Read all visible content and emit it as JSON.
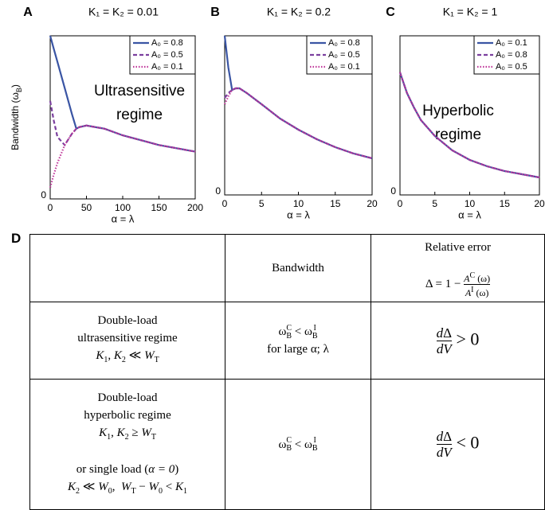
{
  "chart_data": [
    {
      "type": "line",
      "panel": "A",
      "title": "K₁ = K₂ = 0.01",
      "ylabel": [
        "Bandwidth (ω",
        {
          "text": "B",
          "style": "sub"
        },
        ")"
      ],
      "xlabel": "α = λ",
      "x": [
        0,
        5,
        10,
        20,
        30,
        36,
        40,
        50,
        75,
        100,
        125,
        150,
        175,
        200
      ],
      "series": [
        {
          "name": "A₀ = 0.8",
          "color": "#3a55a4",
          "dash": "solid",
          "values": [
            1.0,
            0.92,
            0.84,
            0.68,
            0.52,
            0.43,
            0.44,
            0.45,
            0.43,
            0.39,
            0.36,
            0.33,
            0.31,
            0.29
          ]
        },
        {
          "name": "A₀ = 0.5",
          "color": "#7b3f9e",
          "dash": "dashed",
          "values": [
            0.6,
            0.48,
            0.38,
            0.33,
            0.4,
            0.43,
            0.44,
            0.45,
            0.43,
            0.39,
            0.36,
            0.33,
            0.31,
            0.29
          ]
        },
        {
          "name": "A₀ = 0.1",
          "color": "#c0399b",
          "dash": "dotted",
          "values": [
            0.07,
            0.15,
            0.22,
            0.33,
            0.4,
            0.43,
            0.44,
            0.45,
            0.43,
            0.39,
            0.36,
            0.33,
            0.31,
            0.29
          ]
        }
      ],
      "annotation": [
        "Ultrasensitive",
        "regime"
      ],
      "xlim": [
        0,
        200
      ],
      "ylim": [
        0,
        1
      ],
      "xticks": [
        0,
        50,
        100,
        150,
        200
      ],
      "yticks": [
        0
      ],
      "legend": "upper right"
    },
    {
      "type": "line",
      "panel": "B",
      "title": "K₁ = K₂ = 0.2",
      "xlabel": "α = λ",
      "x": [
        0,
        0.5,
        1,
        1.5,
        2,
        3,
        5,
        7.5,
        10,
        12.5,
        15,
        17.5,
        20
      ],
      "series": [
        {
          "name": "A₀ = 0.8",
          "color": "#3a55a4",
          "dash": "solid",
          "values": [
            1.0,
            0.8,
            0.66,
            0.67,
            0.67,
            0.64,
            0.57,
            0.48,
            0.41,
            0.35,
            0.3,
            0.26,
            0.23
          ]
        },
        {
          "name": "A₀ = 0.5",
          "color": "#7b3f9e",
          "dash": "dashed",
          "values": [
            0.61,
            0.64,
            0.66,
            0.67,
            0.67,
            0.64,
            0.57,
            0.48,
            0.41,
            0.35,
            0.3,
            0.26,
            0.23
          ]
        },
        {
          "name": "A₀ = 0.1",
          "color": "#c0399b",
          "dash": "dotted",
          "values": [
            0.57,
            0.62,
            0.66,
            0.67,
            0.67,
            0.64,
            0.57,
            0.48,
            0.41,
            0.35,
            0.3,
            0.26,
            0.23
          ]
        }
      ],
      "xlim": [
        0,
        20
      ],
      "ylim": [
        0,
        1
      ],
      "xticks": [
        0,
        5,
        10,
        15,
        20
      ],
      "yticks": [
        0
      ],
      "legend": "upper right"
    },
    {
      "type": "line",
      "panel": "C",
      "title": "K₁ = K₂ = 1",
      "xlabel": "α = λ",
      "x": [
        0,
        1,
        2,
        3,
        5,
        7.5,
        10,
        12.5,
        15,
        17.5,
        20
      ],
      "series": [
        {
          "name": "A₀ = 0.1",
          "color": "#3a55a4",
          "dash": "solid",
          "values": [
            0.77,
            0.64,
            0.55,
            0.47,
            0.37,
            0.28,
            0.22,
            0.18,
            0.15,
            0.13,
            0.11
          ]
        },
        {
          "name": "A₀ = 0.8",
          "color": "#7b3f9e",
          "dash": "dashed",
          "values": [
            0.77,
            0.64,
            0.55,
            0.47,
            0.37,
            0.28,
            0.22,
            0.18,
            0.15,
            0.13,
            0.11
          ]
        },
        {
          "name": "A₀ = 0.5",
          "color": "#c0399b",
          "dash": "dotted",
          "values": [
            0.77,
            0.64,
            0.55,
            0.47,
            0.37,
            0.28,
            0.22,
            0.18,
            0.15,
            0.13,
            0.11
          ]
        }
      ],
      "annotation": [
        "Hyperbolic",
        "regime"
      ],
      "xlim": [
        0,
        20
      ],
      "ylim": [
        0,
        1
      ],
      "xticks": [
        0,
        5,
        10,
        15,
        20
      ],
      "yticks": [
        0
      ],
      "legend": "upper right"
    }
  ],
  "table": {
    "panel": "D",
    "rows": [
      [
        [],
        [
          "Bandwidth"
        ],
        [
          "Relative error",
          [
            "Δ = 1 − ",
            {
              "num": [
                {
                  "text": "A",
                  "style": "i"
                },
                {
                  "text": "C",
                  "style": "sup"
                },
                " (ω)"
              ],
              "den": [
                {
                  "text": "A",
                  "style": "i"
                },
                {
                  "text": "I",
                  "style": "sup"
                },
                " (ω)"
              ]
            }
          ]
        ]
      ],
      [
        [
          "Double-load",
          "ultrasensitive regime",
          [
            {
              "text": "K",
              "style": "i"
            },
            {
              "text": "1",
              "style": "sub"
            },
            ", ",
            {
              "text": "K",
              "style": "i"
            },
            {
              "text": "2",
              "style": "sub"
            },
            " ≪ ",
            {
              "text": "W",
              "style": "i"
            },
            {
              "text": "T",
              "style": "sub"
            }
          ]
        ],
        [
          [
            "ω",
            {
              "sup": "C",
              "sub": "B"
            },
            " < ω",
            {
              "sup": "I",
              "sub": "B"
            }
          ],
          "for large α; λ"
        ],
        [
          [
            {
              "num": [
                {
                  "text": "d",
                  "style": "i"
                },
                "Δ"
              ],
              "den": [
                {
                  "text": "dV",
                  "style": "i"
                }
              ]
            },
            " > 0"
          ]
        ]
      ],
      [
        [
          "Double-load",
          "hyperbolic regime",
          [
            {
              "text": "K",
              "style": "i"
            },
            {
              "text": "1",
              "style": "sub"
            },
            ", ",
            {
              "text": "K",
              "style": "i"
            },
            {
              "text": "2",
              "style": "sub"
            },
            " ≥ ",
            {
              "text": "W",
              "style": "i"
            },
            {
              "text": "T",
              "style": "sub"
            }
          ],
          [
            "or single load (",
            {
              "text": "α = 0",
              "style": "i"
            },
            ")"
          ],
          [
            {
              "text": "K",
              "style": "i"
            },
            {
              "text": "2",
              "style": "sub"
            },
            " ≪ ",
            {
              "text": "W",
              "style": "i"
            },
            {
              "text": "0",
              "style": "sub"
            },
            ",  ",
            {
              "text": "W",
              "style": "i"
            },
            {
              "text": "T",
              "style": "sub"
            },
            " − ",
            {
              "text": "W",
              "style": "i"
            },
            {
              "text": "0",
              "style": "sub"
            },
            " < ",
            {
              "text": "K",
              "style": "i"
            },
            {
              "text": "1",
              "style": "sub"
            }
          ]
        ],
        [
          [
            "ω",
            {
              "sup": "C",
              "sub": "B"
            },
            " < ω",
            {
              "sup": "I",
              "sub": "B"
            }
          ]
        ],
        [
          [
            {
              "num": [
                {
                  "text": "d",
                  "style": "i"
                },
                "Δ"
              ],
              "den": [
                {
                  "text": "dV",
                  "style": "i"
                }
              ]
            },
            " < 0"
          ]
        ]
      ]
    ]
  }
}
